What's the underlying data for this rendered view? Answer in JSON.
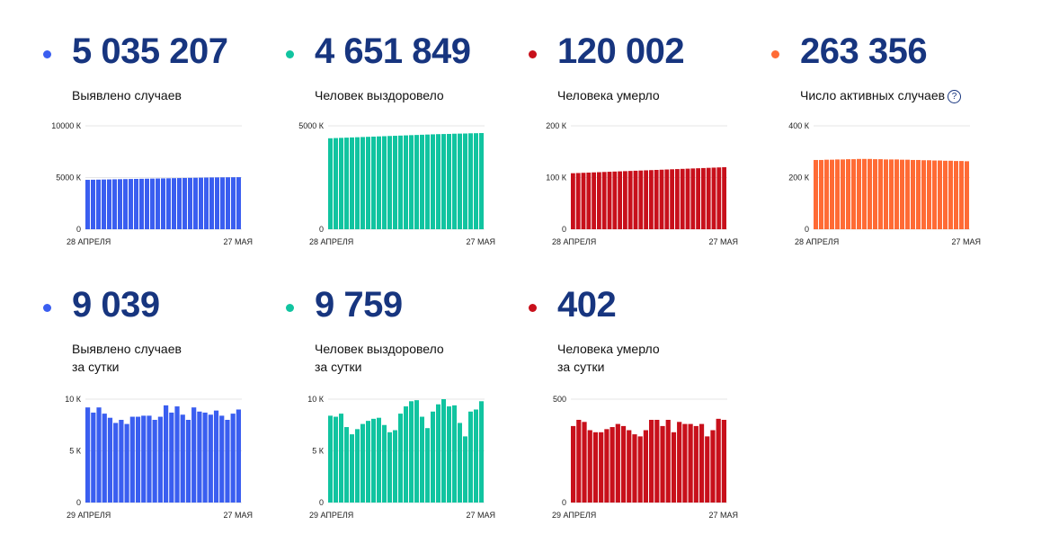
{
  "cards": [
    {
      "value": "5 035 207",
      "label": "Выявлено случаев",
      "color": "#3a5ef0",
      "chart_data": {
        "type": "bar",
        "y_ticks": [
          "10000 К",
          "5000 К",
          "0"
        ],
        "ylim": [
          0,
          10000
        ],
        "x_start": "28 АПРЕЛЯ",
        "x_end": "27 МАЯ",
        "values": [
          4780,
          4790,
          4800,
          4810,
          4820,
          4830,
          4840,
          4850,
          4860,
          4870,
          4880,
          4890,
          4900,
          4910,
          4920,
          4930,
          4940,
          4950,
          4960,
          4970,
          4980,
          4990,
          5000,
          5010,
          5015,
          5020,
          5025,
          5030,
          5035
        ]
      }
    },
    {
      "value": "4 651 849",
      "label": "Человек выздоровело",
      "color": "#11c4a0",
      "chart_data": {
        "type": "bar",
        "y_ticks": [
          "5000 К",
          "0"
        ],
        "ylim": [
          0,
          5000
        ],
        "x_start": "28 АПРЕЛЯ",
        "x_end": "27 МАЯ",
        "values": [
          4400,
          4410,
          4420,
          4430,
          4440,
          4450,
          4460,
          4470,
          4480,
          4490,
          4500,
          4510,
          4520,
          4530,
          4540,
          4550,
          4560,
          4570,
          4580,
          4590,
          4600,
          4605,
          4610,
          4620,
          4625,
          4630,
          4640,
          4645,
          4652
        ]
      }
    },
    {
      "value": "120 002",
      "label": "Человека умерло",
      "color": "#c8101b",
      "chart_data": {
        "type": "bar",
        "y_ticks": [
          "200 К",
          "100 К",
          "0"
        ],
        "ylim": [
          0,
          200
        ],
        "x_start": "28 АПРЕЛЯ",
        "x_end": "27 МАЯ",
        "values": [
          108.4,
          108.8,
          109.2,
          109.6,
          110.0,
          110.4,
          110.8,
          111.2,
          111.6,
          112.0,
          112.4,
          112.8,
          113.2,
          113.6,
          114.0,
          114.4,
          114.8,
          115.2,
          115.6,
          116.0,
          116.4,
          116.8,
          117.2,
          117.6,
          118.0,
          118.4,
          118.8,
          119.2,
          119.6,
          120.0
        ]
      }
    },
    {
      "value": "263 356",
      "label": "Число активных случаев",
      "help": "?",
      "color": "#ff6b35",
      "chart_data": {
        "type": "bar",
        "y_ticks": [
          "400 К",
          "200 К",
          "0"
        ],
        "ylim": [
          0,
          400
        ],
        "x_start": "28 АПРЕЛЯ",
        "x_end": "27 МАЯ",
        "values": [
          268,
          268,
          269,
          269,
          270,
          270,
          271,
          271,
          272,
          272,
          272,
          271,
          271,
          270,
          270,
          270,
          269,
          269,
          268,
          268,
          267,
          267,
          266,
          266,
          265,
          265,
          264,
          264,
          263
        ]
      }
    },
    {
      "value": "9 039",
      "label": "Выявлено случаев",
      "label2": "за сутки",
      "color": "#3a5ef0",
      "chart_data": {
        "type": "bar",
        "y_ticks": [
          "10 К",
          "5 К",
          "0"
        ],
        "ylim": [
          0,
          10
        ],
        "x_start": "29 АПРЕЛЯ",
        "x_end": "27 МАЯ",
        "values": [
          9.2,
          8.7,
          9.2,
          8.6,
          8.2,
          7.7,
          8.0,
          7.6,
          8.3,
          8.3,
          8.4,
          8.4,
          8.0,
          8.3,
          9.4,
          8.7,
          9.3,
          8.5,
          8.0,
          9.2,
          8.8,
          8.7,
          8.5,
          8.9,
          8.4,
          8.0,
          8.6,
          9.0
        ]
      }
    },
    {
      "value": "9 759",
      "label": "Человек выздоровело",
      "label2": "за сутки",
      "color": "#11c4a0",
      "chart_data": {
        "type": "bar",
        "y_ticks": [
          "10 К",
          "5 К",
          "0"
        ],
        "ylim": [
          0,
          10
        ],
        "x_start": "29 АПРЕЛЯ",
        "x_end": "27 МАЯ",
        "values": [
          8.4,
          8.3,
          8.6,
          7.3,
          6.6,
          7.1,
          7.6,
          7.9,
          8.1,
          8.2,
          7.5,
          6.8,
          7.0,
          8.6,
          9.3,
          9.8,
          9.9,
          8.3,
          7.2,
          8.8,
          9.5,
          10.0,
          9.3,
          9.4,
          7.7,
          6.4,
          8.8,
          9.0,
          9.8
        ]
      }
    },
    {
      "value": "402",
      "label": "Человека умерло",
      "label2": "за сутки",
      "color": "#c8101b",
      "chart_data": {
        "type": "bar",
        "y_ticks": [
          "500",
          "0"
        ],
        "ylim": [
          0,
          500
        ],
        "x_start": "29 АПРЕЛЯ",
        "x_end": "27 МАЯ",
        "values": [
          370,
          400,
          390,
          350,
          340,
          340,
          355,
          365,
          380,
          370,
          350,
          330,
          320,
          350,
          400,
          400,
          370,
          400,
          340,
          390,
          380,
          380,
          370,
          380,
          320,
          350,
          405,
          400
        ]
      }
    }
  ]
}
